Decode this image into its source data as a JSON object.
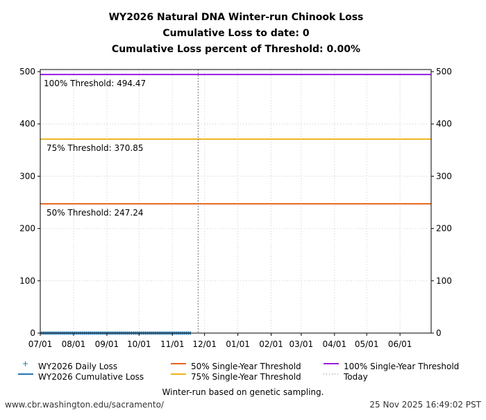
{
  "chart_data": {
    "type": "line",
    "title_lines": [
      "WY2026 Natural DNA Winter-run Chinook Loss",
      "Cumulative Loss to date: 0",
      "Cumulative Loss percent of Threshold: 0.00%"
    ],
    "xlabel": "",
    "ylabel": "",
    "x_range": [
      "2025-07-01",
      "2026-06-30"
    ],
    "x_ticks": [
      {
        "date": "2025-07-01",
        "label": "07/01"
      },
      {
        "date": "2025-08-01",
        "label": "08/01"
      },
      {
        "date": "2025-09-01",
        "label": "09/01"
      },
      {
        "date": "2025-10-01",
        "label": "10/01"
      },
      {
        "date": "2025-11-01",
        "label": "11/01"
      },
      {
        "date": "2025-12-01",
        "label": "12/01"
      },
      {
        "date": "2026-01-01",
        "label": "01/01"
      },
      {
        "date": "2026-02-01",
        "label": "02/01"
      },
      {
        "date": "2026-03-01",
        "label": "03/01"
      },
      {
        "date": "2026-04-01",
        "label": "04/01"
      },
      {
        "date": "2026-05-01",
        "label": "05/01"
      },
      {
        "date": "2026-06-01",
        "label": "06/01"
      }
    ],
    "ylim": [
      0,
      504
    ],
    "y_ticks": [
      0,
      100,
      200,
      300,
      400,
      500
    ],
    "grid": true,
    "series": [
      {
        "name": "WY2026 Daily Loss",
        "kind": "marker",
        "marker": "+",
        "color": "#1f77b4",
        "from": "2025-07-01",
        "to": "2025-11-18",
        "value": 0
      },
      {
        "name": "WY2026 Cumulative Loss",
        "kind": "line",
        "color": "#1f77b4",
        "from": "2025-07-01",
        "to": "2025-11-18",
        "value": 0
      },
      {
        "name": "50% Single-Year Threshold",
        "kind": "hline",
        "color": "#e8641b",
        "value": 247.24,
        "label": "50% Threshold: 247.24"
      },
      {
        "name": "75% Single-Year Threshold",
        "kind": "hline",
        "color": "#f0b21a",
        "value": 370.85,
        "label": "75% Threshold: 370.85"
      },
      {
        "name": "100% Single-Year Threshold",
        "kind": "hline",
        "color": "#9a1be0",
        "value": 494.47,
        "label": "100% Threshold: 494.47"
      },
      {
        "name": "Today",
        "kind": "vline",
        "color": "#777777",
        "date": "2025-11-25"
      }
    ],
    "legend_placement": "bottom",
    "footnote": "Winter-run based on genetic sampling."
  },
  "footer": {
    "url": "www.cbr.washington.edu/sacramento/",
    "timestamp": "25 Nov 2025 16:49:02 PST"
  }
}
